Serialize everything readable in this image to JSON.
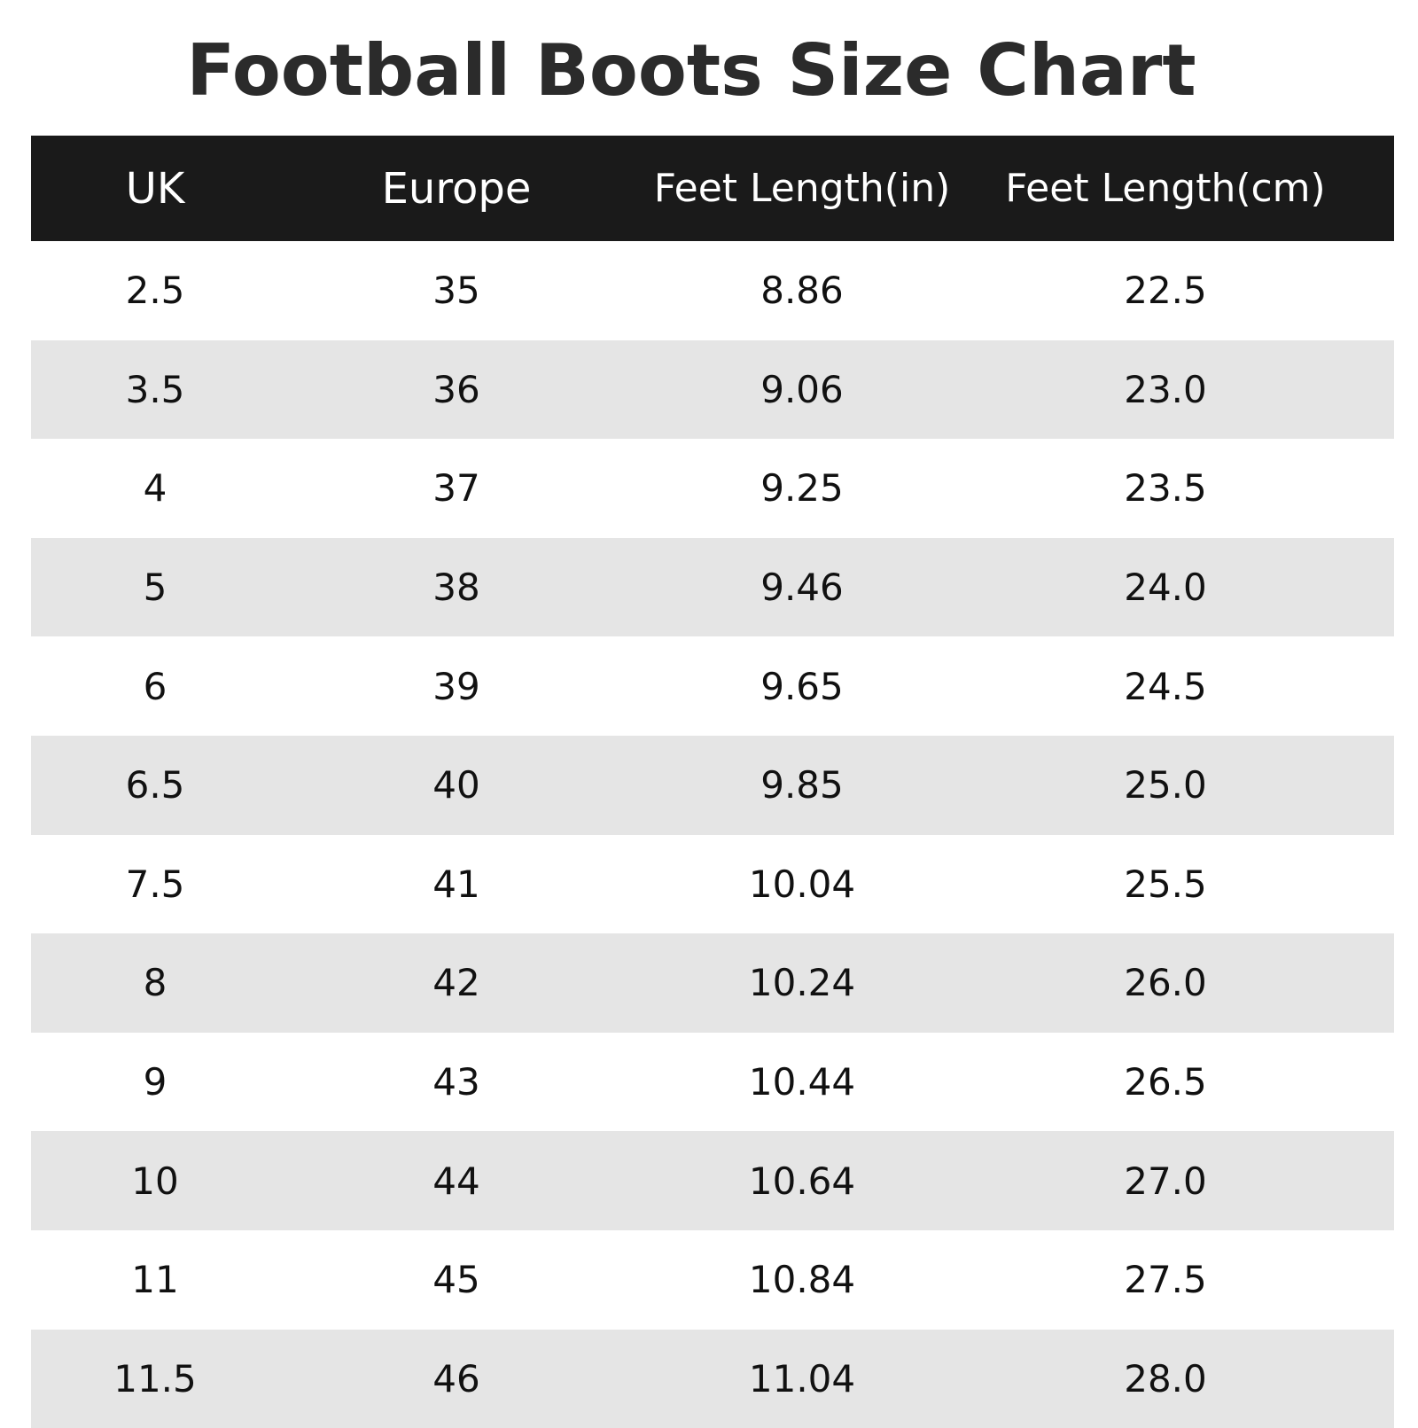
{
  "title": "Football Boots Size Chart",
  "table": {
    "headers": [
      "UK",
      "Europe",
      "Feet Length(in)",
      "Feet Length(cm)"
    ],
    "rows": [
      [
        "2.5",
        "35",
        "8.86",
        "22.5"
      ],
      [
        "3.5",
        "36",
        "9.06",
        "23.0"
      ],
      [
        "4",
        "37",
        "9.25",
        "23.5"
      ],
      [
        "5",
        "38",
        "9.46",
        "24.0"
      ],
      [
        "6",
        "39",
        "9.65",
        "24.5"
      ],
      [
        "6.5",
        "40",
        "9.85",
        "25.0"
      ],
      [
        "7.5",
        "41",
        "10.04",
        "25.5"
      ],
      [
        "8",
        "42",
        "10.24",
        "26.0"
      ],
      [
        "9",
        "43",
        "10.44",
        "26.5"
      ],
      [
        "10",
        "44",
        "10.64",
        "27.0"
      ],
      [
        "11",
        "45",
        "10.84",
        "27.5"
      ],
      [
        "11.5",
        "46",
        "11.04",
        "28.0"
      ]
    ]
  },
  "colors": {
    "header_bg": "#1a1a1a",
    "header_text": "#ffffff",
    "stripe": "#e5e5e5",
    "title": "#2b2b2b"
  }
}
